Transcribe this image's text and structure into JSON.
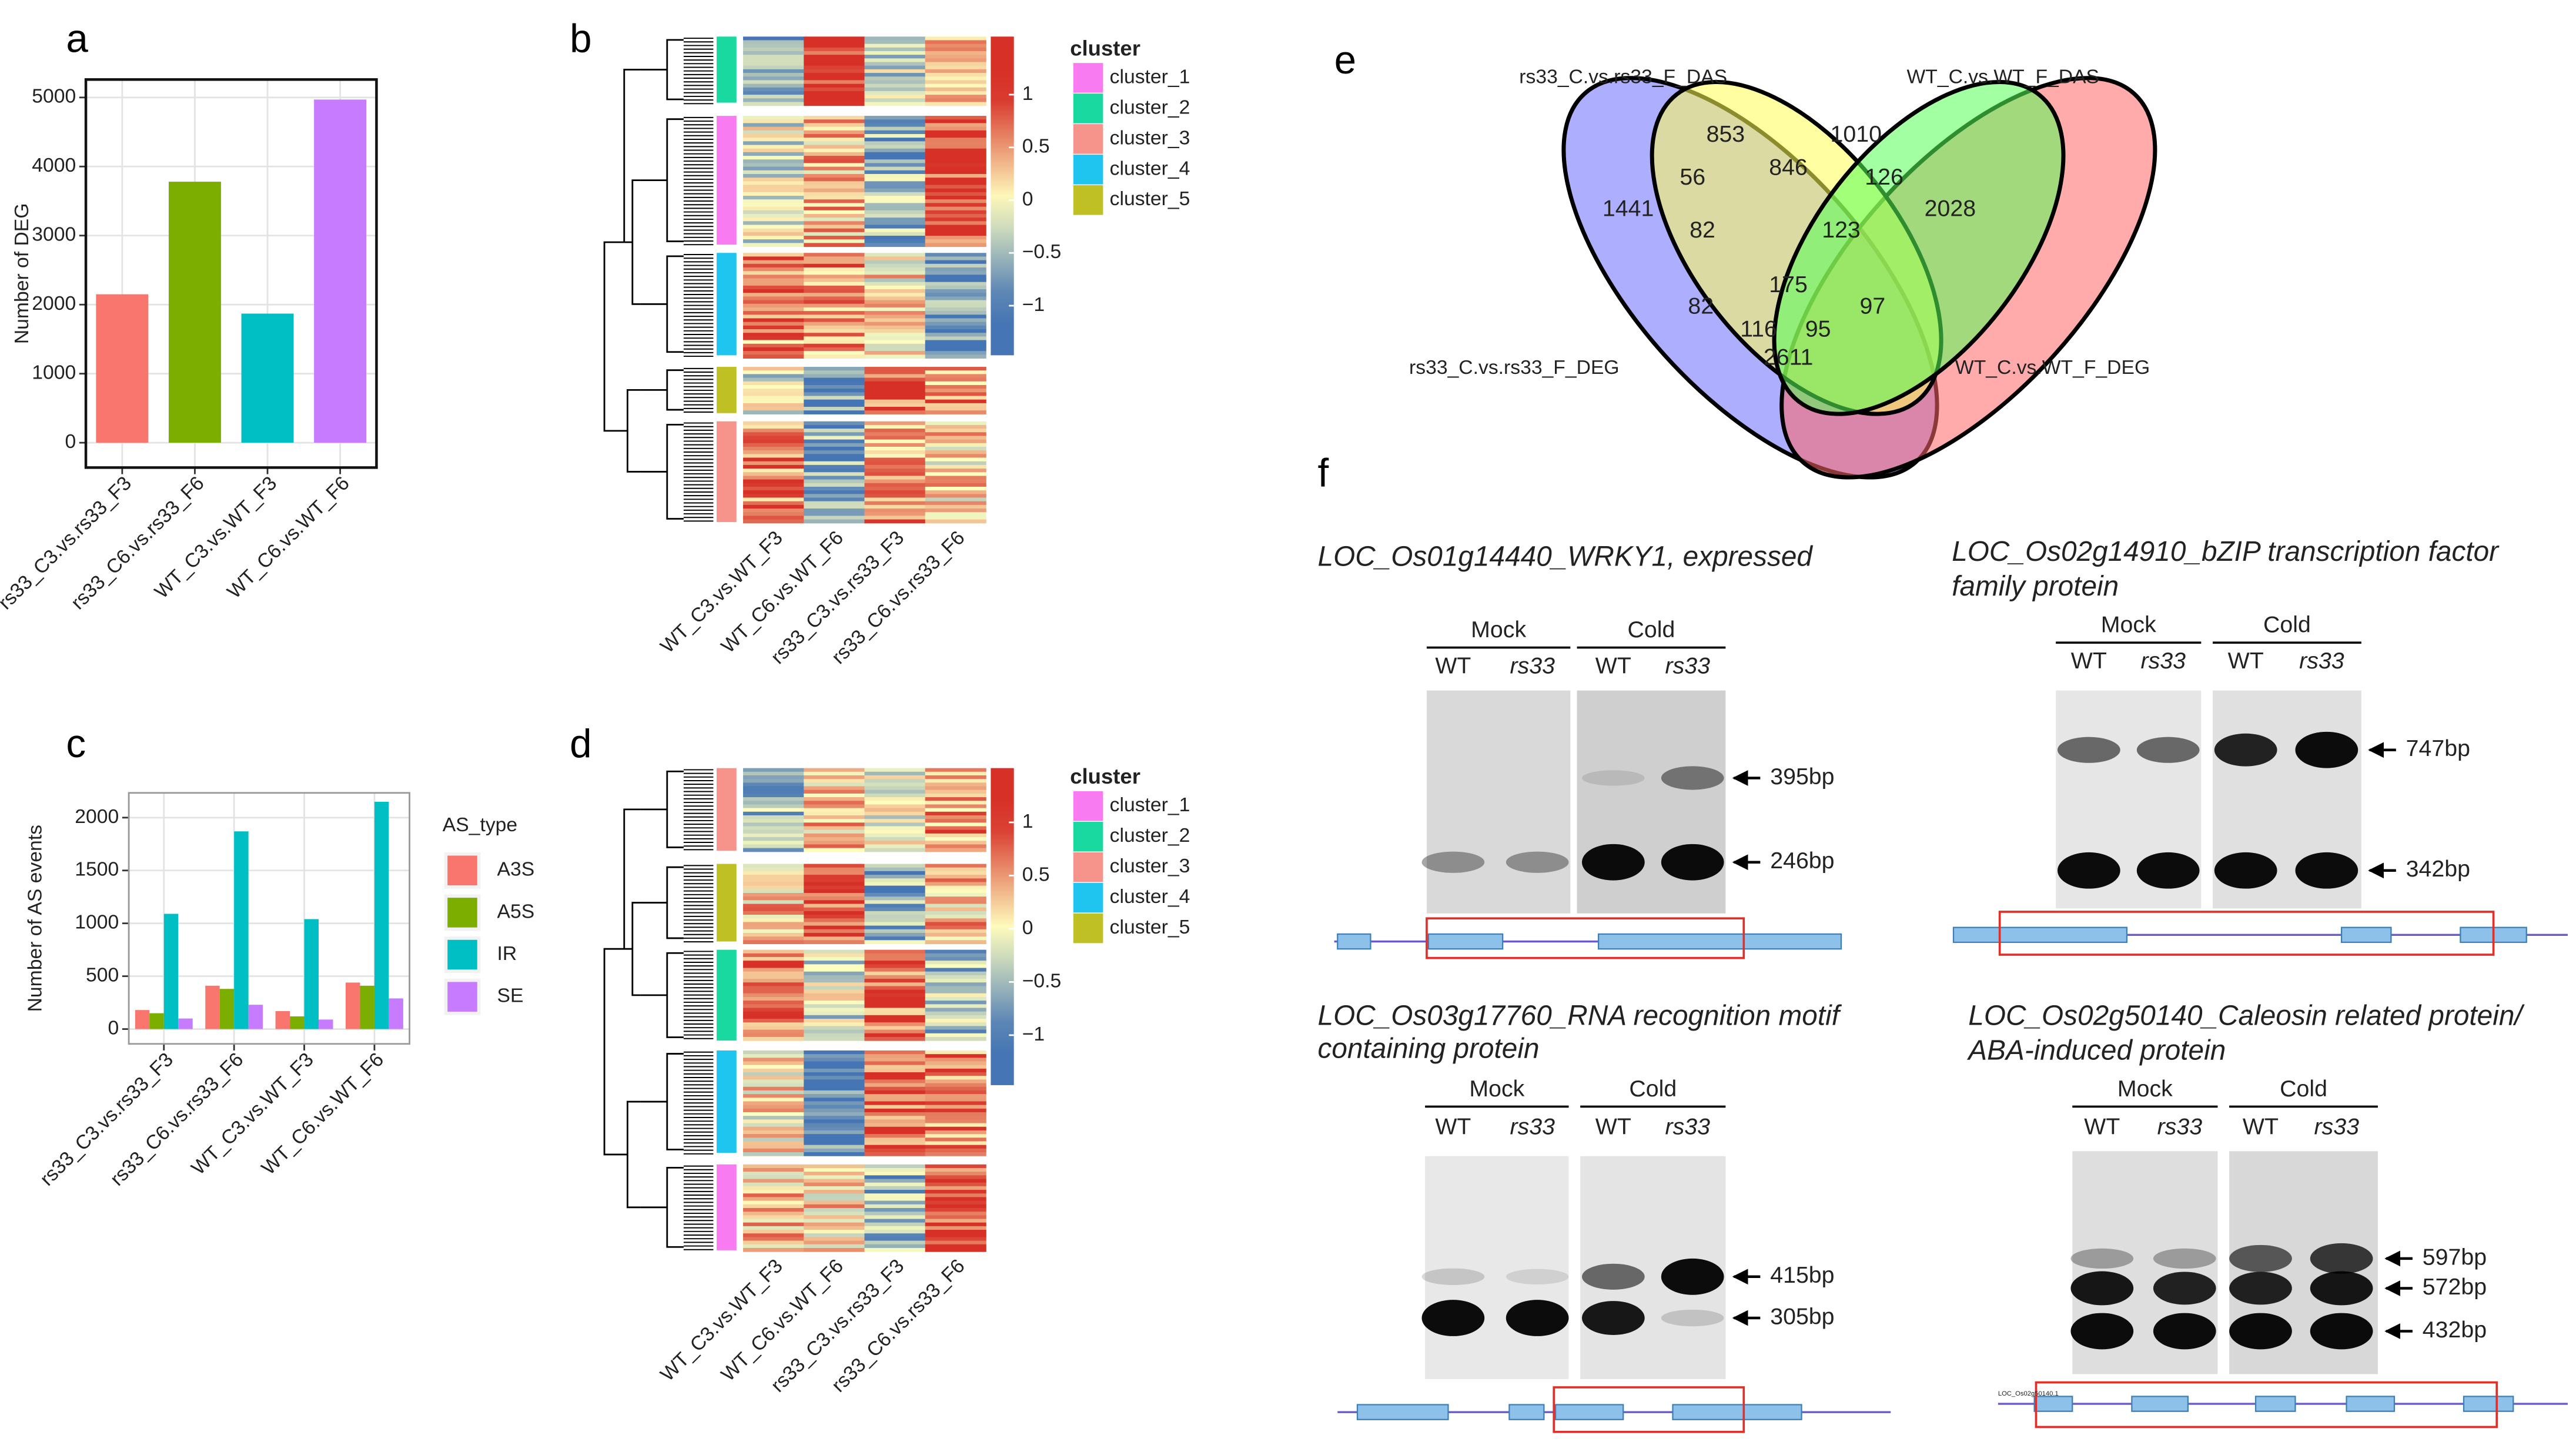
{
  "panel_labels": [
    "a",
    "b",
    "c",
    "d",
    "e",
    "f"
  ],
  "chart_data": [
    {
      "type": "bar",
      "y_label": "Number of DEG",
      "categories": [
        "rs33_C3.vs.rs33_F3",
        "rs33_C6.vs.rs33_F6",
        "WT_C3.vs.WT_F3",
        "WT_C6.vs.WT_F6"
      ],
      "values": [
        2150,
        3780,
        1870,
        4970
      ],
      "colors": [
        "#f8766d",
        "#7cae00",
        "#00bfc4",
        "#c77cff"
      ],
      "ylim": [
        -360,
        5260
      ],
      "yticks": [
        0,
        1000,
        2000,
        3000,
        4000,
        5000
      ],
      "grid": true
    },
    {
      "type": "grouped_bar",
      "y_label": "Number of AS events",
      "legend_title": "AS_type",
      "categories": [
        "rs33_C3.vs.rs33_F3",
        "rs33_C6.vs.rs33_F6",
        "WT_C3.vs.WT_F3",
        "WT_C6.vs.WT_F6"
      ],
      "series": [
        {
          "name": "A3S",
          "color": "#f8766d",
          "values": [
            180,
            410,
            170,
            440
          ]
        },
        {
          "name": "A5S",
          "color": "#7cae00",
          "values": [
            150,
            380,
            120,
            410
          ]
        },
        {
          "name": "IR",
          "color": "#00bfc4",
          "values": [
            1090,
            1870,
            1040,
            2150
          ]
        },
        {
          "name": "SE",
          "color": "#c77cff",
          "values": [
            100,
            230,
            90,
            290
          ]
        }
      ],
      "ylim": [
        -140,
        2234
      ],
      "yticks": [
        0,
        500,
        1000,
        1500,
        2000
      ],
      "grid": true
    }
  ],
  "heatmaps": [
    {
      "column_labels": [
        "WT_C3.vs.WT_F3",
        "WT_C6.vs.WT_F6",
        "rs33_C3.vs.rs33_F3",
        "rs33_C6.vs.rs33_F6"
      ],
      "legend_title": "cluster",
      "clusters": [
        {
          "name": "cluster_1",
          "color": "#f97bf2"
        },
        {
          "name": "cluster_2",
          "color": "#19d8a0"
        },
        {
          "name": "cluster_3",
          "color": "#f6948c"
        },
        {
          "name": "cluster_4",
          "color": "#1fc5ee"
        },
        {
          "name": "cluster_5",
          "color": "#bfc024"
        }
      ],
      "colorbar_ticks": [
        1,
        0.5,
        0,
        {
          "value": -0.5,
          "label": "−0.5"
        },
        {
          "value": -1,
          "label": "−1"
        }
      ],
      "colorbar_lim": [
        -1.47,
        1.55
      ]
    },
    {
      "column_labels": [
        "WT_C3.vs.WT_F3",
        "WT_C6.vs.WT_F6",
        "rs33_C3.vs.rs33_F3",
        "rs33_C6.vs.rs33_F6"
      ],
      "legend_title": "cluster",
      "clusters": [
        {
          "name": "cluster_1",
          "color": "#f97bf2"
        },
        {
          "name": "cluster_2",
          "color": "#19d8a0"
        },
        {
          "name": "cluster_3",
          "color": "#f6948c"
        },
        {
          "name": "cluster_4",
          "color": "#1fc5ee"
        },
        {
          "name": "cluster_5",
          "color": "#bfc024"
        }
      ],
      "colorbar_ticks": [
        1,
        0.5,
        0,
        {
          "value": -0.5,
          "label": "−0.5"
        },
        {
          "value": -1,
          "label": "−1"
        }
      ],
      "colorbar_lim": [
        -1.47,
        1.51
      ]
    }
  ],
  "venn": {
    "sets": [
      "rs33_C.vs.rs33_F_DAS",
      "WT_C.vs.WT_F_DAS",
      "rs33_C.vs.rs33_F_DEG",
      "WT_C.vs.WT_F_DEG"
    ],
    "regions": [
      853,
      1010,
      1441,
      2028,
      56,
      846,
      126,
      82,
      123,
      175,
      82,
      97,
      116,
      95,
      2611
    ]
  },
  "gels": [
    {
      "title": [
        "LOC_Os01g14440_WRKY1, expressed"
      ],
      "groups": [
        "Mock",
        "Cold"
      ],
      "lanes": [
        "WT",
        "rs33",
        "WT",
        "rs33"
      ],
      "bands": [
        "395bp",
        "246bp"
      ]
    },
    {
      "title": [
        "LOC_Os02g14910_bZIP transcription factor",
        "family protein"
      ],
      "groups": [
        "Mock",
        "Cold"
      ],
      "lanes": [
        "WT",
        "rs33",
        "WT",
        "rs33"
      ],
      "bands": [
        "747bp",
        "342bp"
      ]
    },
    {
      "title": [
        "LOC_Os03g17760_RNA recognition motif",
        "containing protein"
      ],
      "groups": [
        "Mock",
        "Cold"
      ],
      "lanes": [
        "WT",
        "rs33",
        "WT",
        "rs33"
      ],
      "bands": [
        "415bp",
        "305bp"
      ]
    },
    {
      "title": [
        "LOC_Os02g50140_Caleosin related protein/",
        "ABA-induced protein"
      ],
      "groups": [
        "Mock",
        "Cold"
      ],
      "lanes": [
        "WT",
        "rs33",
        "WT",
        "rs33"
      ],
      "bands": [
        "597bp",
        "572bp",
        "432bp"
      ],
      "gene_label": "LOC_Os02g50140.1"
    }
  ]
}
